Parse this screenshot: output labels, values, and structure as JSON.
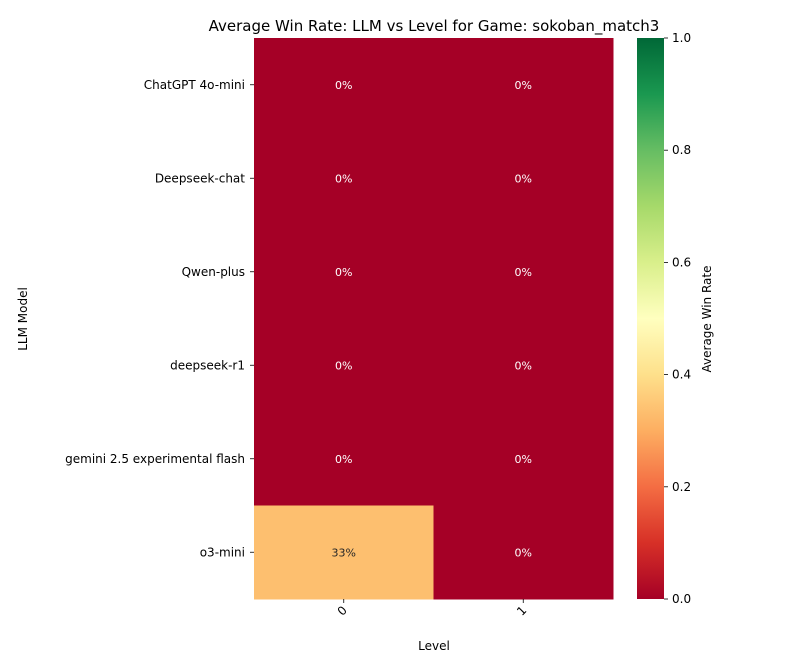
{
  "chart_data": {
    "type": "heatmap",
    "title": "Average Win Rate: LLM vs Level for Game: sokoban_match3",
    "xlabel": "Level",
    "ylabel": "LLM Model",
    "x_categories": [
      "0",
      "1"
    ],
    "y_categories": [
      "ChatGPT 4o-mini",
      "Deepseek-chat",
      "Qwen-plus",
      "deepseek-r1",
      "gemini 2.5 experimental flash",
      "o3-mini"
    ],
    "values": [
      [
        0.0,
        0.0
      ],
      [
        0.0,
        0.0
      ],
      [
        0.0,
        0.0
      ],
      [
        0.0,
        0.0
      ],
      [
        0.0,
        0.0
      ],
      [
        0.3333,
        0.0
      ]
    ],
    "cell_labels": [
      [
        "0%",
        "0%"
      ],
      [
        "0%",
        "0%"
      ],
      [
        "0%",
        "0%"
      ],
      [
        "0%",
        "0%"
      ],
      [
        "0%",
        "0%"
      ],
      [
        "33%",
        "0%"
      ]
    ],
    "colorbar": {
      "label": "Average Win Rate",
      "range": [
        0.0,
        1.0
      ],
      "ticks": [
        "0.0",
        "0.2",
        "0.4",
        "0.6",
        "0.8",
        "1.0"
      ],
      "colormap": "RdYlGn"
    },
    "grid": false
  }
}
